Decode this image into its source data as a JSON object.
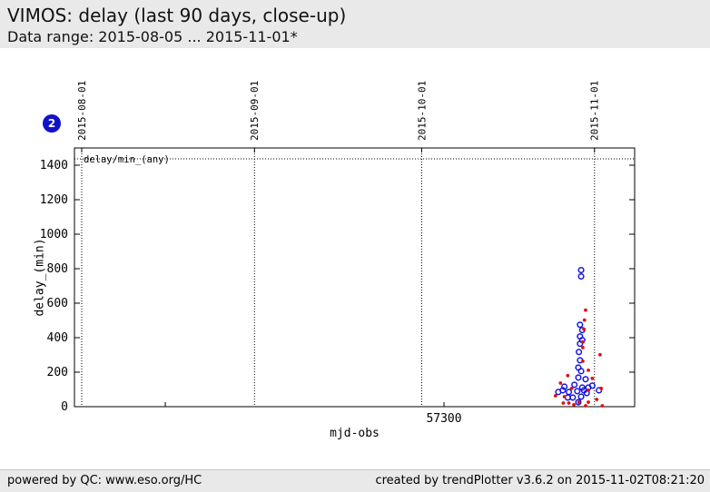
{
  "header": {
    "title": "VIMOS: delay (last 90 days, close-up)",
    "subtitle": "Data range: 2015-08-05 ... 2015-11-01*"
  },
  "badge": {
    "label": "2",
    "color": "#1111cc"
  },
  "footer": {
    "left": "powered by QC: www.eso.org/HC",
    "right": "created by trendPlotter v3.6.2 on 2015-11-02T08:21:20"
  },
  "chart_data": {
    "type": "scatter",
    "title": "VIMOS: delay (last 90 days, close-up)",
    "xlabel": "mjd-obs",
    "ylabel": "delay_(min)",
    "key_label": "delay/min_(any)",
    "x_range": [
      57233.7,
      57334.2
    ],
    "y_range": [
      0,
      1500
    ],
    "grid": "dotted-verticals-at-month-starts",
    "x_ticks": [
      {
        "value": 57250,
        "label": ""
      },
      {
        "value": 57300,
        "label": "57300"
      }
    ],
    "y_ticks": [
      {
        "value": 0,
        "label": "0"
      },
      {
        "value": 200,
        "label": "200"
      },
      {
        "value": 400,
        "label": "400"
      },
      {
        "value": 600,
        "label": "600"
      },
      {
        "value": 800,
        "label": "800"
      },
      {
        "value": 1000,
        "label": "1000"
      },
      {
        "value": 1200,
        "label": "1200"
      },
      {
        "value": 1400,
        "label": "1400"
      }
    ],
    "x2_ticks": [
      {
        "value": 57235,
        "label": "2015-08-01"
      },
      {
        "value": 57266,
        "label": "2015-09-01"
      },
      {
        "value": 57296,
        "label": "2015-10-01"
      },
      {
        "value": 57327,
        "label": "2015-11-01"
      }
    ],
    "hline": {
      "value": 1437,
      "style": "dotted"
    },
    "series": [
      {
        "name": "delay/min_(any)",
        "marker": "open-circle",
        "color": "#1414e0",
        "points": [
          [
            57324.6,
            792
          ],
          [
            57324.6,
            755
          ],
          [
            57324.4,
            475
          ],
          [
            57324.8,
            444
          ],
          [
            57324.4,
            407
          ],
          [
            57324.8,
            386
          ],
          [
            57324.4,
            365
          ],
          [
            57324.2,
            317
          ],
          [
            57324.4,
            269
          ],
          [
            57324.1,
            227
          ],
          [
            57324.6,
            206
          ],
          [
            57324.1,
            169
          ],
          [
            57325.4,
            159
          ],
          [
            57323.4,
            127
          ],
          [
            57321.6,
            116
          ],
          [
            57324.8,
            111
          ],
          [
            57326.6,
            122
          ],
          [
            57327.8,
            95
          ],
          [
            57322.4,
            85
          ],
          [
            57323.9,
            90
          ],
          [
            57325.6,
            79
          ],
          [
            57324.6,
            58
          ],
          [
            57323.1,
            53
          ],
          [
            57321.3,
            95
          ],
          [
            57320.5,
            85
          ],
          [
            57322.2,
            53
          ],
          [
            57325.9,
            111
          ],
          [
            57324.1,
            26
          ],
          [
            57325.1,
            95
          ]
        ]
      },
      {
        "name": "",
        "marker": "dot",
        "color": "#e01010",
        "points": [
          [
            57325.4,
            560
          ],
          [
            57325.2,
            502
          ],
          [
            57325.1,
            449
          ],
          [
            57324.9,
            375
          ],
          [
            57324.9,
            343
          ],
          [
            57328.0,
            301
          ],
          [
            57324.9,
            264
          ],
          [
            57325.9,
            211
          ],
          [
            57322.2,
            180
          ],
          [
            57326.6,
            164
          ],
          [
            57320.9,
            137
          ],
          [
            57322.9,
            106
          ],
          [
            57325.9,
            95
          ],
          [
            57328.2,
            106
          ],
          [
            57321.6,
            58
          ],
          [
            57320.0,
            63
          ],
          [
            57324.2,
            26
          ],
          [
            57322.4,
            21
          ],
          [
            57325.9,
            26
          ],
          [
            57327.4,
            42
          ],
          [
            57328.4,
            5
          ],
          [
            57321.4,
            21
          ],
          [
            57323.3,
            11
          ],
          [
            57325.4,
            5
          ]
        ]
      }
    ]
  }
}
